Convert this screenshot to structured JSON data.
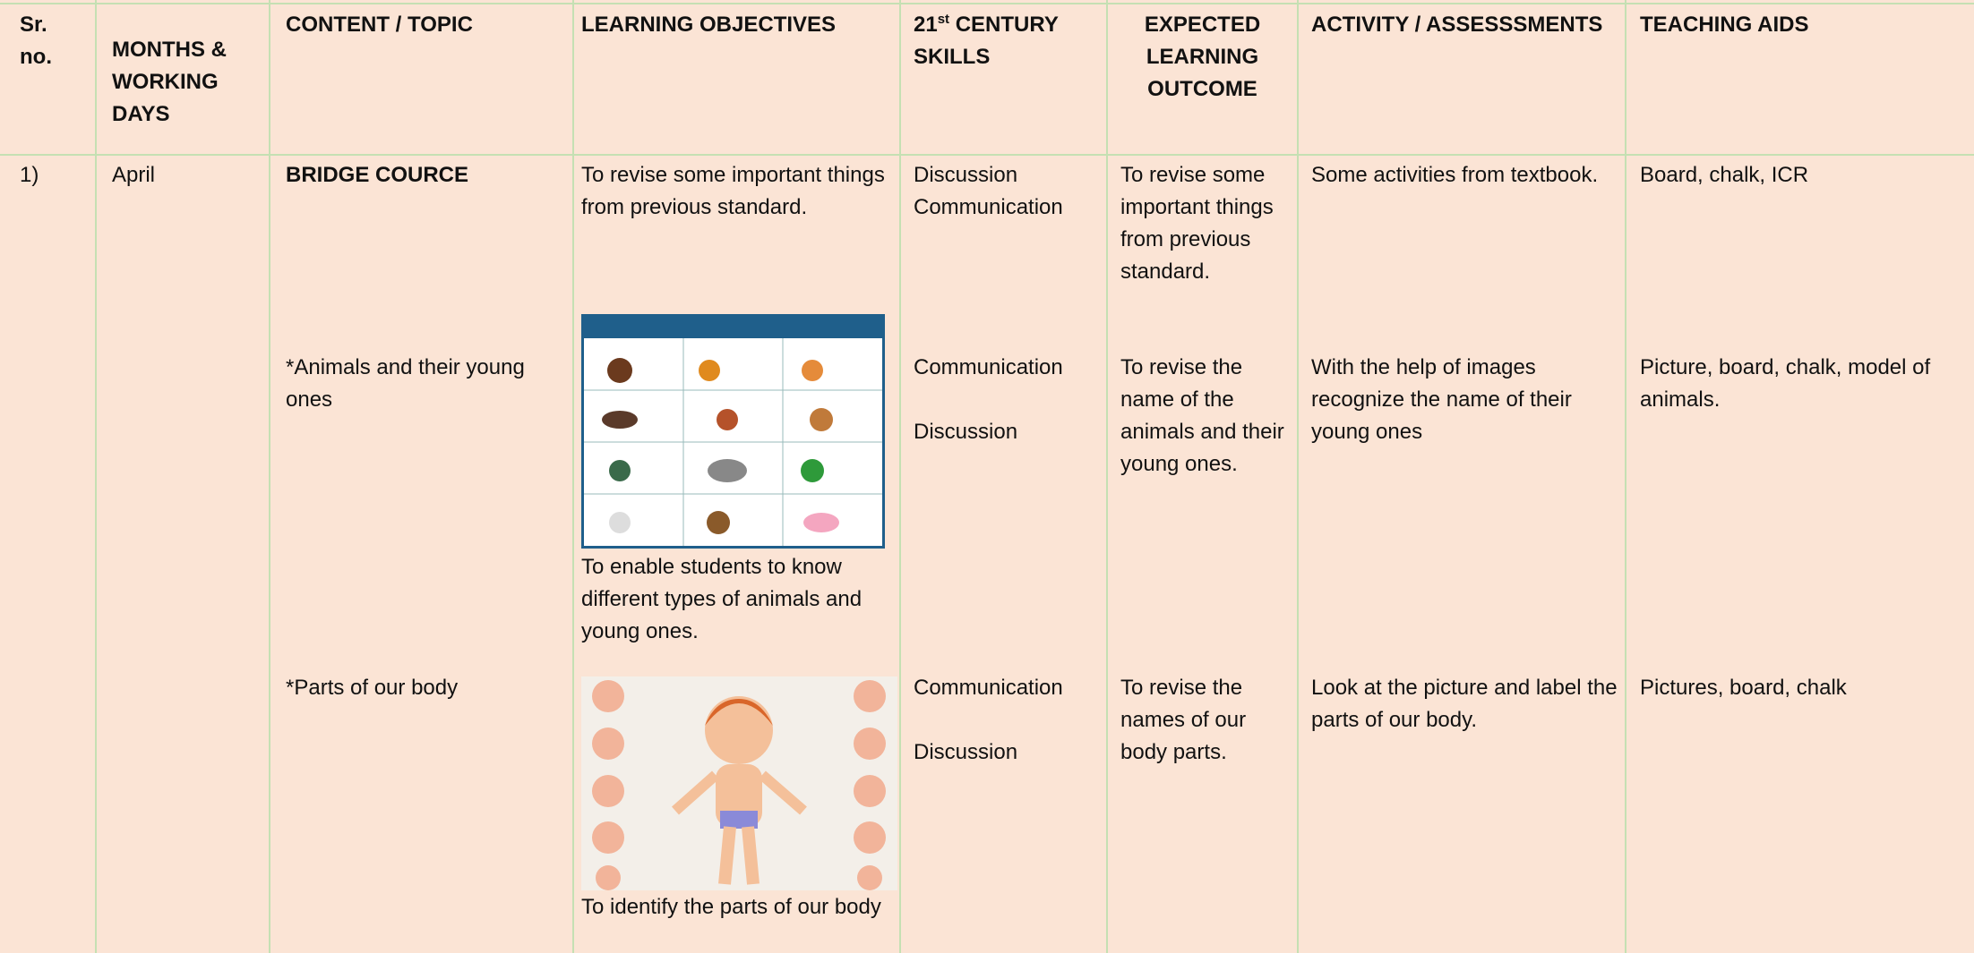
{
  "table": {
    "headers": {
      "sr_no": "Sr.\nno.",
      "months": "MONTHS &\nWORKING\nDAYS",
      "content": "CONTENT / TOPIC",
      "objectives": "LEARNING OBJECTIVES",
      "skills_ordinal": "21",
      "skills_suffix": "st",
      "skills_rest": " CENTURY\nSKILLS",
      "outcome": "EXPECTED\nLEARNING\nOUTCOME",
      "activity": "ACTIVITY / ASSESSSMENTS",
      "aids": "TEACHING AIDS"
    },
    "rows": [
      {
        "sr_no": "1)",
        "month": "April",
        "sections": [
          {
            "topic": "BRIDGE COURCE",
            "objective": "To revise some important things from previous standard.",
            "skills": "Discussion\nCommunication",
            "outcome": "To revise some important things from previous standard.",
            "activity": "Some activities from textbook.",
            "aids": "Board, chalk, ICR"
          },
          {
            "topic": "*Animals and their young ones",
            "objective": "To enable students to know different types of animals and young ones.",
            "skills": "Communication\n\nDiscussion",
            "outcome": "To revise the name of the animals and their young ones.",
            "activity": "With the help of images recognize the name of their young ones",
            "aids": "Picture, board, chalk, model of animals."
          },
          {
            "topic": "*Parts of our body",
            "objective": "To identify the parts of our body",
            "skills": "Communication\n\nDiscussion",
            "outcome": "To revise the names of our body parts.",
            "activity": "Look at the picture and label the parts of our body.",
            "aids": "Pictures, board, chalk"
          }
        ]
      }
    ]
  }
}
